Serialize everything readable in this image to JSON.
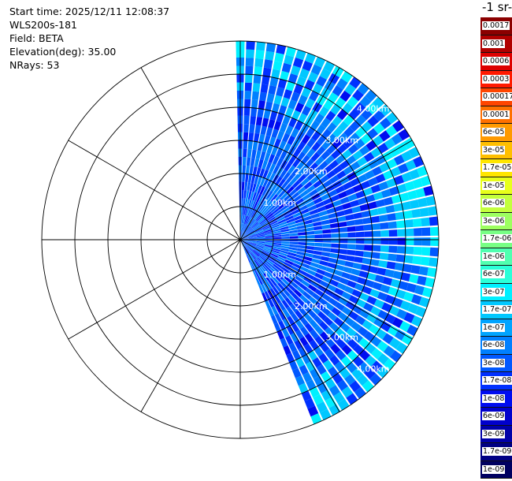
{
  "info": {
    "start_time": "Start time: 2025/12/11 12:08:37",
    "instrument": "WLS200s-181",
    "field": "Field: BETA",
    "elevation": "Elevation(deg): 35.00",
    "nrays": "NRays: 53"
  },
  "colorbar": {
    "title": "-1 sr-",
    "levels": [
      {
        "label": "0.0017",
        "color": "#8b0000"
      },
      {
        "label": "0.001",
        "color": "#b00000"
      },
      {
        "label": "0.0006",
        "color": "#dd0000"
      },
      {
        "label": "0.0003",
        "color": "#ff1a00"
      },
      {
        "label": "0.00017",
        "color": "#ff4500"
      },
      {
        "label": "0.0001",
        "color": "#ff7000"
      },
      {
        "label": "6e-05",
        "color": "#ff9a00"
      },
      {
        "label": "3e-05",
        "color": "#ffbf00"
      },
      {
        "label": "1.7e-05",
        "color": "#ffe600"
      },
      {
        "label": "1e-05",
        "color": "#e8ff1a"
      },
      {
        "label": "6e-06",
        "color": "#c3ff3d"
      },
      {
        "label": "3e-06",
        "color": "#9dff60"
      },
      {
        "label": "1.7e-06",
        "color": "#78ff85"
      },
      {
        "label": "1e-06",
        "color": "#50ffb0"
      },
      {
        "label": "6e-07",
        "color": "#2bffd8"
      },
      {
        "label": "3e-07",
        "color": "#00f0ff"
      },
      {
        "label": "1.7e-07",
        "color": "#00c8ff"
      },
      {
        "label": "1e-07",
        "color": "#00a4ff"
      },
      {
        "label": "6e-08",
        "color": "#0080ff"
      },
      {
        "label": "3e-08",
        "color": "#0058ff"
      },
      {
        "label": "1.7e-08",
        "color": "#0030ff"
      },
      {
        "label": "1e-08",
        "color": "#000cf0"
      },
      {
        "label": "6e-09",
        "color": "#0000cc"
      },
      {
        "label": "3e-09",
        "color": "#0000a8"
      },
      {
        "label": "1.7e-09",
        "color": "#000084"
      },
      {
        "label": "1e-09",
        "color": "#000060"
      }
    ]
  },
  "chart_data": {
    "type": "heatmap",
    "projection": "polar-ppi",
    "field": "BETA",
    "n_rays": 53,
    "azimuth_range_deg": [
      0,
      157
    ],
    "max_range_km": 6.0,
    "range_rings_km": [
      1,
      2,
      3,
      4,
      5,
      6
    ],
    "ring_labels": [
      "1.00km",
      "2.00km",
      "3.00km",
      "4.00km",
      "5.00km"
    ],
    "spoke_step_deg": 30,
    "dominant_level": "3e-08",
    "far_range_level": "3e-07"
  }
}
